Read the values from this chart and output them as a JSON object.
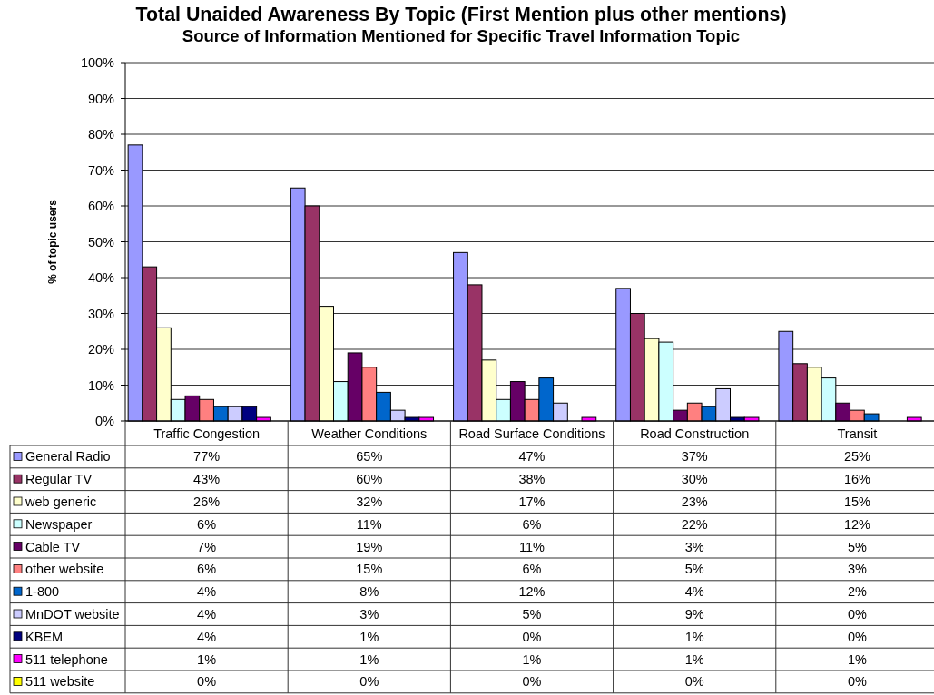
{
  "chart_data": {
    "type": "bar",
    "title": "Total Unaided Awareness By Topic (First Mention plus other mentions)",
    "subtitle": "Source of Information Mentioned for Specific Travel Information Topic",
    "ylabel": "% of topic users",
    "categories": [
      "Traffic Congestion",
      "Weather Conditions",
      "Road Surface Conditions",
      "Road Construction",
      "Transit"
    ],
    "series": [
      {
        "name": "General Radio",
        "color": "#9999ff",
        "values": [
          77,
          65,
          47,
          37,
          25
        ],
        "value_labels": [
          "77%",
          "65%",
          "47%",
          "37%",
          "25%"
        ]
      },
      {
        "name": "Regular TV",
        "color": "#993366",
        "values": [
          43,
          60,
          38,
          30,
          16
        ],
        "value_labels": [
          "43%",
          "60%",
          "38%",
          "30%",
          "16%"
        ]
      },
      {
        "name": "web generic",
        "color": "#ffffcc",
        "values": [
          26,
          32,
          17,
          23,
          15
        ],
        "value_labels": [
          "26%",
          "32%",
          "17%",
          "23%",
          "15%"
        ]
      },
      {
        "name": "Newspaper",
        "color": "#ccffff",
        "values": [
          6,
          11,
          6,
          22,
          12
        ],
        "value_labels": [
          "6%",
          "11%",
          "6%",
          "22%",
          "12%"
        ]
      },
      {
        "name": "Cable TV",
        "color": "#660066",
        "values": [
          7,
          19,
          11,
          3,
          5
        ],
        "value_labels": [
          "7%",
          "19%",
          "11%",
          "3%",
          "5%"
        ]
      },
      {
        "name": "other website",
        "color": "#ff8080",
        "values": [
          6,
          15,
          6,
          5,
          3
        ],
        "value_labels": [
          "6%",
          "15%",
          "6%",
          "5%",
          "3%"
        ]
      },
      {
        "name": "1-800",
        "color": "#0066cc",
        "values": [
          4,
          8,
          12,
          4,
          2
        ],
        "value_labels": [
          "4%",
          "8%",
          "12%",
          "4%",
          "2%"
        ]
      },
      {
        "name": "MnDOT website",
        "color": "#ccccff",
        "values": [
          4,
          3,
          5,
          9,
          0
        ],
        "value_labels": [
          "4%",
          "3%",
          "5%",
          "9%",
          "0%"
        ]
      },
      {
        "name": "KBEM",
        "color": "#000080",
        "values": [
          4,
          1,
          0,
          1,
          0
        ],
        "value_labels": [
          "4%",
          "1%",
          "0%",
          "1%",
          "0%"
        ]
      },
      {
        "name": "511 telephone",
        "color": "#ff00ff",
        "values": [
          1,
          1,
          1,
          1,
          1
        ],
        "value_labels": [
          "1%",
          "1%",
          "1%",
          "1%",
          "1%"
        ]
      },
      {
        "name": "511 website",
        "color": "#ffff00",
        "values": [
          0,
          0,
          0,
          0,
          0
        ],
        "value_labels": [
          "0%",
          "0%",
          "0%",
          "0%",
          "0%"
        ]
      }
    ],
    "ylim": [
      0,
      100
    ],
    "yticks": [
      {
        "value": 0,
        "label": "0%"
      },
      {
        "value": 10,
        "label": "10%"
      },
      {
        "value": 20,
        "label": "20%"
      },
      {
        "value": 30,
        "label": "30%"
      },
      {
        "value": 40,
        "label": "40%"
      },
      {
        "value": 50,
        "label": "50%"
      },
      {
        "value": 60,
        "label": "60%"
      },
      {
        "value": 70,
        "label": "70%"
      },
      {
        "value": 80,
        "label": "80%"
      },
      {
        "value": 90,
        "label": "90%"
      },
      {
        "value": 100,
        "label": "100%"
      }
    ],
    "grid": "y",
    "legend": "bottom left"
  }
}
